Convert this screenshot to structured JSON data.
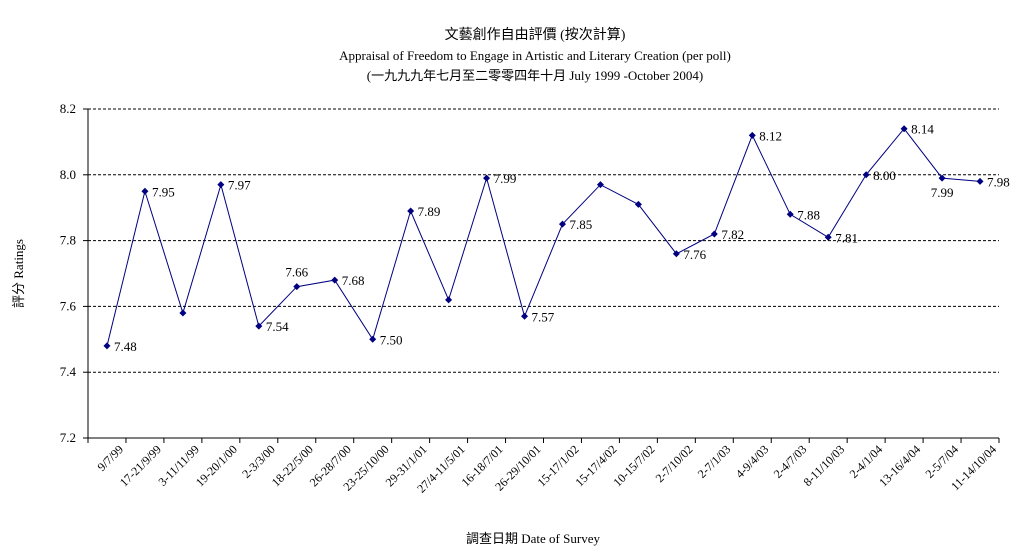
{
  "chart_data": {
    "type": "line",
    "title": "文藝創作自由評價 (按次計算)",
    "subtitle": "Appraisal of Freedom to Engage in Artistic and Literary Creation (per poll)",
    "subtitle2": "(一九九九年七月至二零零四年十月 July 1999 -October 2004)",
    "xlabel": "調查日期 Date of Survey",
    "ylabel": "評分 Ratings",
    "ylim": [
      7.2,
      8.2
    ],
    "yticks": [
      "7.2",
      "7.4",
      "7.6",
      "7.8",
      "8.0",
      "8.2"
    ],
    "grid": true,
    "categories": [
      "9/7/99",
      "17-21/9/99",
      "3-11/11/99",
      "19-20/1/00",
      "2-3/3/00",
      "18-22/5/00",
      "26-28/7/00",
      "23-25/10/00",
      "29-31/1/01",
      "27/4-11/5/01",
      "16-18/7/01",
      "26-29/10/01",
      "15-17/1/02",
      "15-17/4/02",
      "10-15/7/02",
      "2-7/10/02",
      "2-7/1/03",
      "4-9/4/03",
      "2-4/7/03",
      "8-11/10/03",
      "2-4/1/04",
      "13-16/4/04",
      "2-5/7/04",
      "11-14/10/04"
    ],
    "series": [
      {
        "values": [
          7.48,
          7.95,
          7.58,
          7.97,
          7.54,
          7.66,
          7.68,
          7.5,
          7.89,
          7.62,
          7.99,
          7.57,
          7.85,
          7.97,
          7.91,
          7.76,
          7.82,
          8.12,
          7.88,
          7.81,
          8.0,
          8.14,
          7.99,
          7.98
        ],
        "labels": [
          "7.48",
          "7.95",
          "",
          "7.97",
          "7.54",
          "7.66",
          "7.68",
          "7.50",
          "7.89",
          "",
          "7.99",
          "7.57",
          "7.85",
          "",
          "",
          "7.76",
          "7.82",
          "8.12",
          "7.88",
          "7.81",
          "8.00",
          "8.14",
          "7.99",
          "7.98"
        ],
        "color": "#000080"
      }
    ]
  }
}
